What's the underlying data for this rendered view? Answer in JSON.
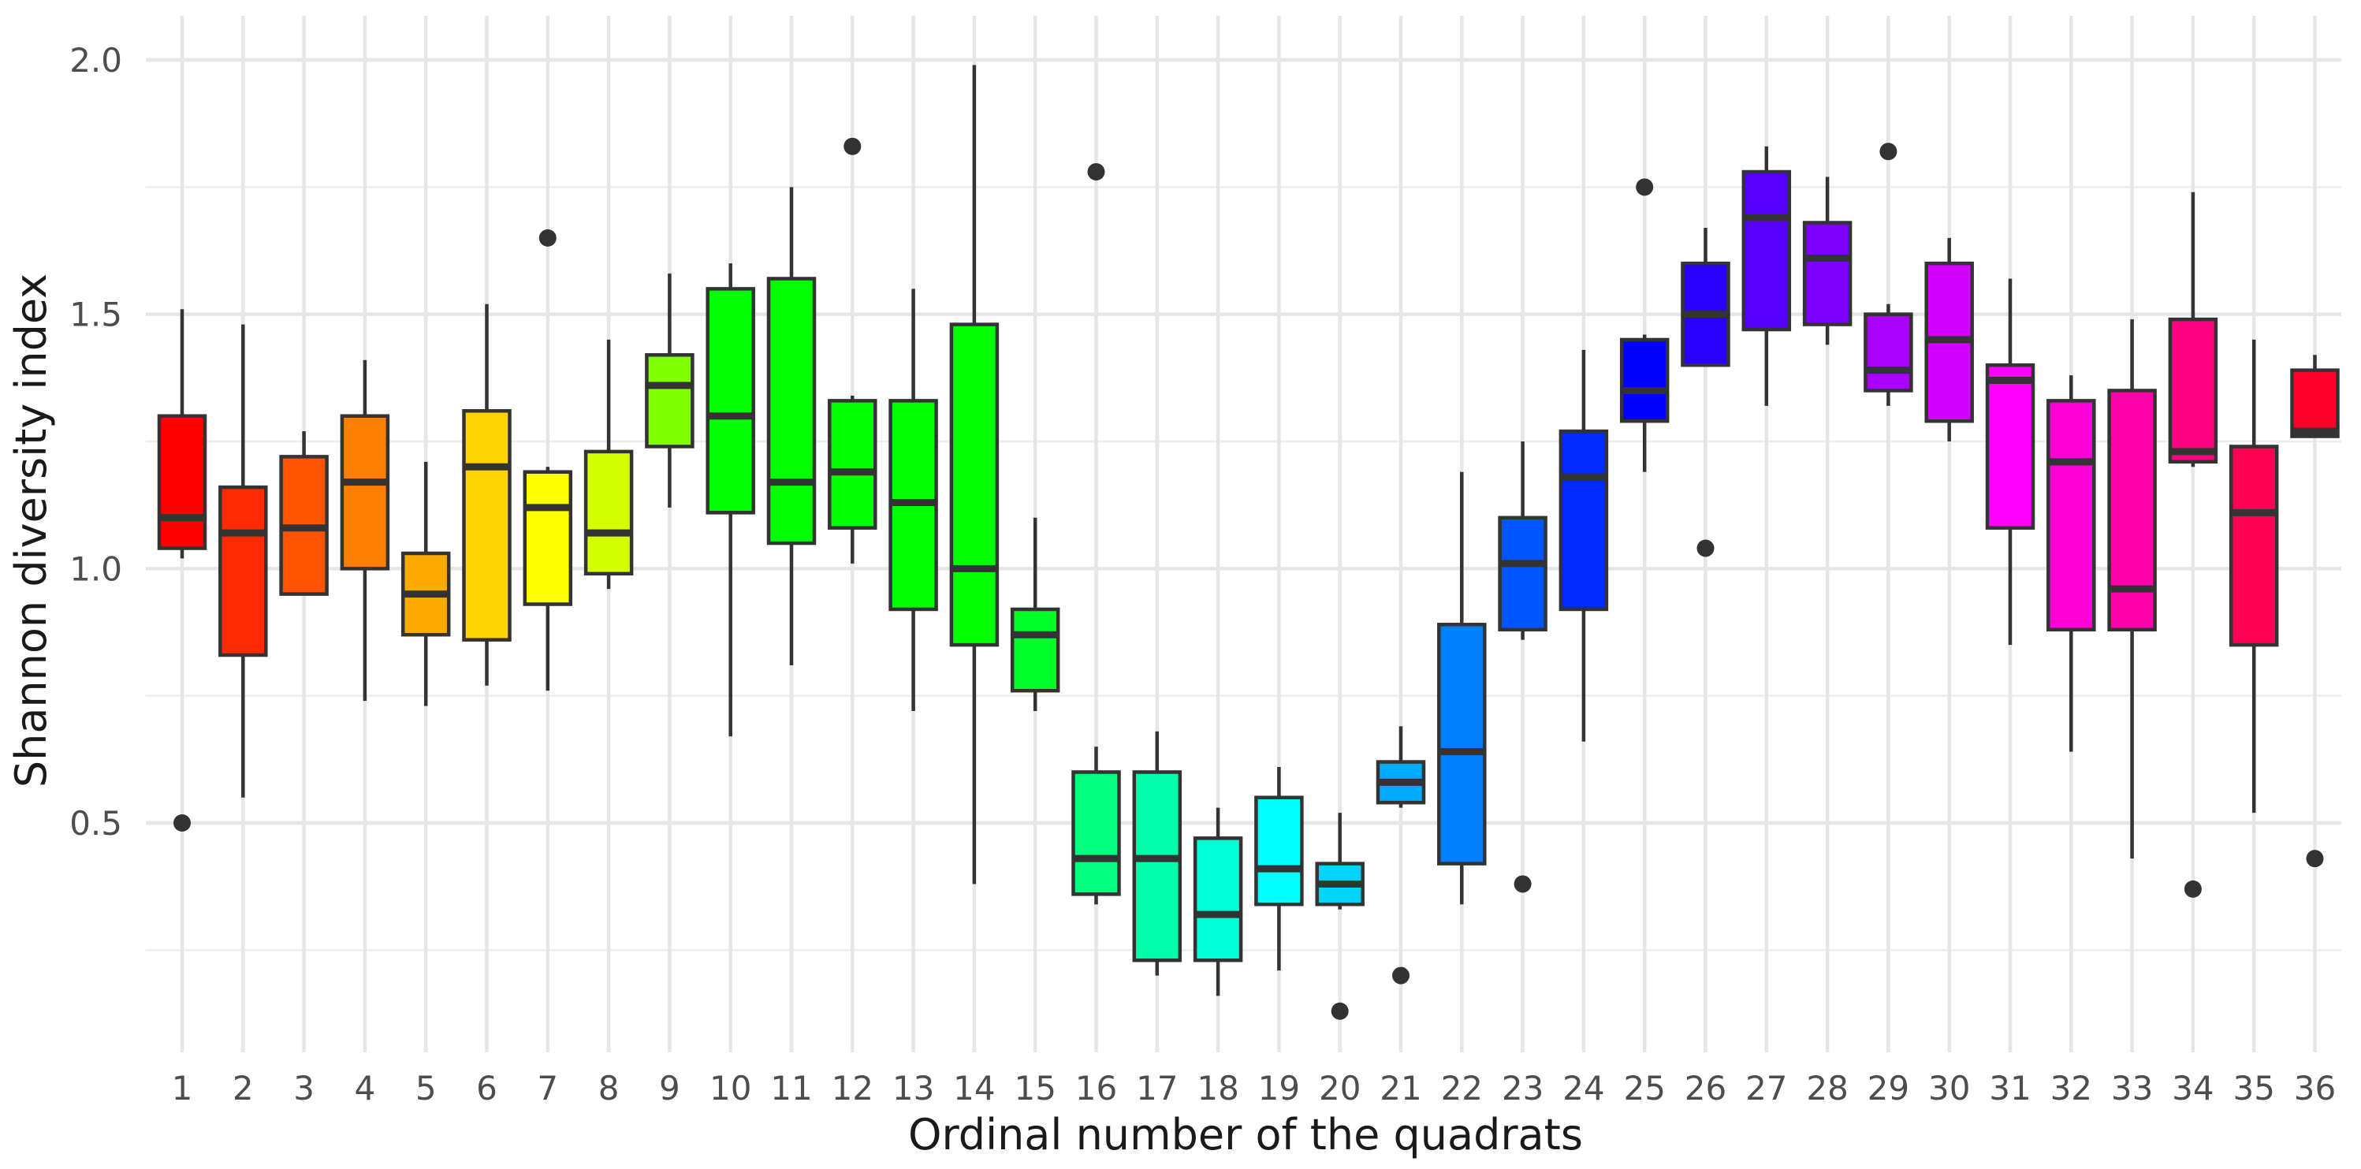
{
  "chart_data": {
    "type": "boxplot",
    "xlabel": "Ordinal number of the quadrats",
    "ylabel": "Shannon diversity index",
    "ylim": [
      0.0,
      2.0
    ],
    "yticks": [
      0.5,
      1.0,
      1.5,
      2.0
    ],
    "ytick_labels": [
      "0.5",
      "1.0",
      "1.5",
      "2.0"
    ],
    "grid": true,
    "legend": "none",
    "boxes": [
      {
        "label": "1",
        "color": "#FF0000",
        "min": 1.02,
        "q1": 1.04,
        "median": 1.1,
        "q3": 1.3,
        "max": 1.51,
        "outliers": [
          0.5
        ]
      },
      {
        "label": "2",
        "color": "#FF2A00",
        "min": 0.55,
        "q1": 0.83,
        "median": 1.07,
        "q3": 1.16,
        "max": 1.48,
        "outliers": []
      },
      {
        "label": "3",
        "color": "#FF5500",
        "min": 0.95,
        "q1": 0.95,
        "median": 1.08,
        "q3": 1.22,
        "max": 1.27,
        "outliers": []
      },
      {
        "label": "4",
        "color": "#FF7F00",
        "min": 0.74,
        "q1": 1.0,
        "median": 1.17,
        "q3": 1.3,
        "max": 1.41,
        "outliers": []
      },
      {
        "label": "5",
        "color": "#FFAA00",
        "min": 0.73,
        "q1": 0.87,
        "median": 0.95,
        "q3": 1.03,
        "max": 1.21,
        "outliers": []
      },
      {
        "label": "6",
        "color": "#FFD400",
        "min": 0.77,
        "q1": 0.86,
        "median": 1.2,
        "q3": 1.31,
        "max": 1.52,
        "outliers": []
      },
      {
        "label": "7",
        "color": "#FFFF00",
        "min": 0.76,
        "q1": 0.93,
        "median": 1.12,
        "q3": 1.19,
        "max": 1.2,
        "outliers": [
          1.65
        ]
      },
      {
        "label": "8",
        "color": "#D4FF00",
        "min": 0.96,
        "q1": 0.99,
        "median": 1.07,
        "q3": 1.23,
        "max": 1.45,
        "outliers": []
      },
      {
        "label": "9",
        "color": "#7FFF00",
        "min": 1.12,
        "q1": 1.24,
        "median": 1.36,
        "q3": 1.42,
        "max": 1.58,
        "outliers": []
      },
      {
        "label": "10",
        "color": "#00FF00",
        "min": 0.67,
        "q1": 1.11,
        "median": 1.3,
        "q3": 1.55,
        "max": 1.6,
        "outliers": []
      },
      {
        "label": "11",
        "color": "#00FF00",
        "min": 0.81,
        "q1": 1.05,
        "median": 1.17,
        "q3": 1.57,
        "max": 1.75,
        "outliers": []
      },
      {
        "label": "12",
        "color": "#00FF00",
        "min": 1.01,
        "q1": 1.08,
        "median": 1.19,
        "q3": 1.33,
        "max": 1.34,
        "outliers": [
          1.83
        ]
      },
      {
        "label": "13",
        "color": "#00FF00",
        "min": 0.72,
        "q1": 0.92,
        "median": 1.13,
        "q3": 1.33,
        "max": 1.55,
        "outliers": []
      },
      {
        "label": "14",
        "color": "#00FF00",
        "min": 0.38,
        "q1": 0.85,
        "median": 1.0,
        "q3": 1.48,
        "max": 1.99,
        "outliers": []
      },
      {
        "label": "15",
        "color": "#00FF2A",
        "min": 0.72,
        "q1": 0.76,
        "median": 0.87,
        "q3": 0.92,
        "max": 1.1,
        "outliers": []
      },
      {
        "label": "16",
        "color": "#00FF7F",
        "min": 0.34,
        "q1": 0.36,
        "median": 0.43,
        "q3": 0.6,
        "max": 0.65,
        "outliers": [
          1.78
        ]
      },
      {
        "label": "17",
        "color": "#00FFAA",
        "min": 0.2,
        "q1": 0.23,
        "median": 0.43,
        "q3": 0.6,
        "max": 0.68,
        "outliers": []
      },
      {
        "label": "18",
        "color": "#00FFD4",
        "min": 0.16,
        "q1": 0.23,
        "median": 0.32,
        "q3": 0.47,
        "max": 0.53,
        "outliers": []
      },
      {
        "label": "19",
        "color": "#00FFFF",
        "min": 0.21,
        "q1": 0.34,
        "median": 0.41,
        "q3": 0.55,
        "max": 0.61,
        "outliers": []
      },
      {
        "label": "20",
        "color": "#00D4FF",
        "min": 0.33,
        "q1": 0.34,
        "median": 0.38,
        "q3": 0.42,
        "max": 0.52,
        "outliers": [
          0.13
        ]
      },
      {
        "label": "21",
        "color": "#00AAFF",
        "min": 0.53,
        "q1": 0.54,
        "median": 0.58,
        "q3": 0.62,
        "max": 0.69,
        "outliers": [
          0.2
        ]
      },
      {
        "label": "22",
        "color": "#007FFF",
        "min": 0.34,
        "q1": 0.42,
        "median": 0.64,
        "q3": 0.89,
        "max": 1.19,
        "outliers": []
      },
      {
        "label": "23",
        "color": "#0055FF",
        "min": 0.86,
        "q1": 0.88,
        "median": 1.01,
        "q3": 1.1,
        "max": 1.25,
        "outliers": [
          0.38
        ]
      },
      {
        "label": "24",
        "color": "#002AFF",
        "min": 0.66,
        "q1": 0.92,
        "median": 1.18,
        "q3": 1.27,
        "max": 1.43,
        "outliers": []
      },
      {
        "label": "25",
        "color": "#0000FF",
        "min": 1.19,
        "q1": 1.29,
        "median": 1.35,
        "q3": 1.45,
        "max": 1.46,
        "outliers": [
          1.75
        ]
      },
      {
        "label": "26",
        "color": "#2A00FF",
        "min": 1.4,
        "q1": 1.4,
        "median": 1.5,
        "q3": 1.6,
        "max": 1.67,
        "outliers": [
          1.04
        ]
      },
      {
        "label": "27",
        "color": "#5500FF",
        "min": 1.32,
        "q1": 1.47,
        "median": 1.69,
        "q3": 1.78,
        "max": 1.83,
        "outliers": []
      },
      {
        "label": "28",
        "color": "#7F00FF",
        "min": 1.44,
        "q1": 1.48,
        "median": 1.61,
        "q3": 1.68,
        "max": 1.77,
        "outliers": []
      },
      {
        "label": "29",
        "color": "#AA00FF",
        "min": 1.32,
        "q1": 1.35,
        "median": 1.39,
        "q3": 1.5,
        "max": 1.52,
        "outliers": [
          1.82
        ]
      },
      {
        "label": "30",
        "color": "#D400FF",
        "min": 1.25,
        "q1": 1.29,
        "median": 1.45,
        "q3": 1.6,
        "max": 1.65,
        "outliers": []
      },
      {
        "label": "31",
        "color": "#FF00FF",
        "min": 0.85,
        "q1": 1.08,
        "median": 1.37,
        "q3": 1.4,
        "max": 1.57,
        "outliers": []
      },
      {
        "label": "32",
        "color": "#FF00D4",
        "min": 0.64,
        "q1": 0.88,
        "median": 1.21,
        "q3": 1.33,
        "max": 1.38,
        "outliers": []
      },
      {
        "label": "33",
        "color": "#FF00AA",
        "min": 0.43,
        "q1": 0.88,
        "median": 0.96,
        "q3": 1.35,
        "max": 1.49,
        "outliers": []
      },
      {
        "label": "34",
        "color": "#FF007F",
        "min": 1.2,
        "q1": 1.21,
        "median": 1.23,
        "q3": 1.49,
        "max": 1.74,
        "outliers": [
          0.37
        ]
      },
      {
        "label": "35",
        "color": "#FF0055",
        "min": 0.52,
        "q1": 0.85,
        "median": 1.11,
        "q3": 1.24,
        "max": 1.45,
        "outliers": []
      },
      {
        "label": "36",
        "color": "#FF002A",
        "min": 1.26,
        "q1": 1.26,
        "median": 1.27,
        "q3": 1.39,
        "max": 1.42,
        "outliers": [
          0.43
        ]
      }
    ]
  }
}
